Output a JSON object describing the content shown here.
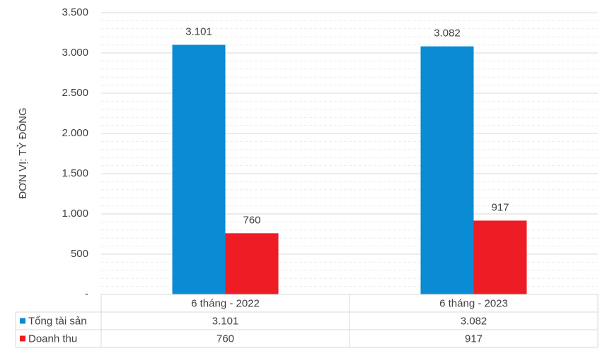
{
  "chart_data": {
    "type": "bar",
    "y_label": "ĐƠN VỊ: TỶ ĐỒNG",
    "categories": [
      "6 tháng - 2022",
      "6 tháng - 2023"
    ],
    "series": [
      {
        "name": "Tổng tài sản",
        "color": "#0a8bd4",
        "values": [
          3101,
          3082
        ],
        "value_labels": [
          "3.101",
          "3.082"
        ]
      },
      {
        "name": "Doanh thu",
        "color": "#ee1c25",
        "values": [
          760,
          917
        ],
        "value_labels": [
          "760",
          "917"
        ]
      }
    ],
    "ylim": [
      0,
      3500
    ],
    "yticks": [
      {
        "value": 0,
        "label": "-"
      },
      500,
      {
        "value": 1000,
        "label": "1.000"
      },
      {
        "value": 1500,
        "label": "1.500"
      },
      {
        "value": 2000,
        "label": "2.000"
      },
      {
        "value": 2500,
        "label": "2.500"
      },
      {
        "value": 3000,
        "label": "3.000"
      },
      {
        "value": 3500,
        "label": "3.500"
      }
    ],
    "grid": true
  }
}
